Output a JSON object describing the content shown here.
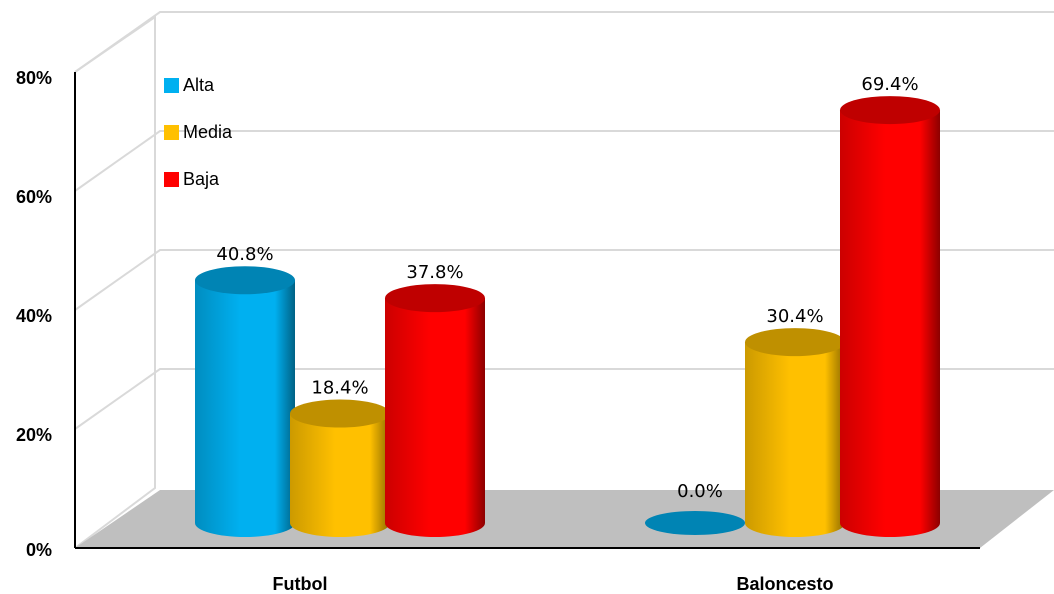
{
  "chart_data": {
    "type": "bar",
    "categories": [
      "Futbol",
      "Baloncesto"
    ],
    "series": [
      {
        "name": "Alta",
        "color": "#00B0F0",
        "values": [
          40.8,
          0.0
        ]
      },
      {
        "name": "Media",
        "color": "#FFC000",
        "values": [
          18.4,
          30.4
        ]
      },
      {
        "name": "Baja",
        "color": "#FF0000",
        "values": [
          37.8,
          69.4
        ]
      }
    ],
    "data_labels": [
      [
        "40.8%",
        "0.0%"
      ],
      [
        "18.4%",
        "30.4%"
      ],
      [
        "37.8%",
        "69.4%"
      ]
    ],
    "y_tick_labels": [
      "0%",
      "20%",
      "40%",
      "60%",
      "80%"
    ],
    "y_ticks": [
      0,
      20,
      40,
      60,
      80
    ],
    "ylim": [
      0,
      80
    ],
    "title": "",
    "xlabel": "",
    "ylabel": "",
    "grid": true,
    "legend_position": "top-left",
    "style": "3d-cylinder"
  }
}
